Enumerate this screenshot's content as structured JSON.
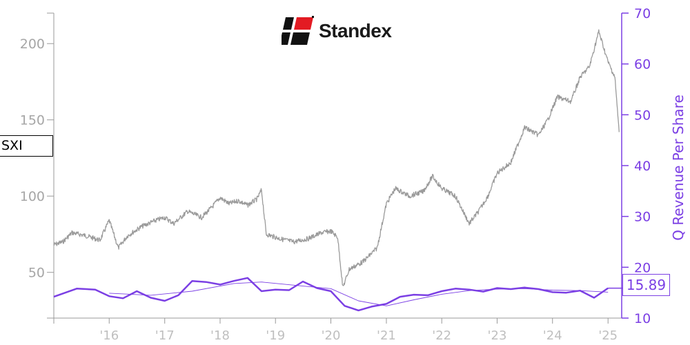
{
  "logo": {
    "company": "Standex"
  },
  "ticker": "SXI",
  "last_value_label": "15.89",
  "colors": {
    "price": "#9a9a9a",
    "revenue": "#7b3fe4",
    "axis_left": "#a6a6a6",
    "axis_x": "#bfbfbf"
  },
  "chart_data": {
    "type": "line",
    "x_axis": {
      "type": "date",
      "range": [
        "2015-01-01",
        "2025-04-01"
      ],
      "tick_labels": [
        "'16",
        "'17",
        "'18",
        "'19",
        "'20",
        "'21",
        "'22",
        "'23",
        "'24",
        "'25"
      ]
    },
    "y_left": {
      "label": "",
      "range": [
        20,
        220
      ],
      "ticks": [
        50,
        100,
        150,
        200
      ]
    },
    "y_right": {
      "label": "Q Revenue Per Share",
      "range": [
        10,
        70
      ],
      "ticks": [
        10,
        20,
        30,
        40,
        50,
        60,
        70
      ]
    },
    "series": [
      {
        "axis": "left",
        "points": [
          [
            "2015-01-01",
            68
          ],
          [
            "2015-03-01",
            70
          ],
          [
            "2015-05-01",
            76
          ],
          [
            "2015-08-01",
            74
          ],
          [
            "2015-11-01",
            71
          ],
          [
            "2016-01-01",
            84
          ],
          [
            "2016-03-01",
            66
          ],
          [
            "2016-05-01",
            74
          ],
          [
            "2016-08-01",
            80
          ],
          [
            "2016-11-01",
            84
          ],
          [
            "2017-01-01",
            86
          ],
          [
            "2017-03-01",
            82
          ],
          [
            "2017-06-01",
            90
          ],
          [
            "2017-09-01",
            86
          ],
          [
            "2017-11-01",
            92
          ],
          [
            "2018-01-01",
            99
          ],
          [
            "2018-03-01",
            95
          ],
          [
            "2018-05-01",
            97
          ],
          [
            "2018-07-01",
            94
          ],
          [
            "2018-09-01",
            98
          ],
          [
            "2018-10-01",
            104
          ],
          [
            "2018-11-01",
            75
          ],
          [
            "2019-02-01",
            72
          ],
          [
            "2019-05-01",
            70
          ],
          [
            "2019-08-01",
            72
          ],
          [
            "2019-11-01",
            76
          ],
          [
            "2020-01-01",
            77
          ],
          [
            "2020-02-15",
            73
          ],
          [
            "2020-03-20",
            40
          ],
          [
            "2020-05-01",
            52
          ],
          [
            "2020-08-01",
            57
          ],
          [
            "2020-11-01",
            66
          ],
          [
            "2021-01-01",
            95
          ],
          [
            "2021-03-01",
            105
          ],
          [
            "2021-06-01",
            100
          ],
          [
            "2021-09-01",
            103
          ],
          [
            "2021-11-01",
            113
          ],
          [
            "2022-01-01",
            105
          ],
          [
            "2022-04-01",
            100
          ],
          [
            "2022-07-01",
            82
          ],
          [
            "2022-09-01",
            90
          ],
          [
            "2022-11-01",
            100
          ],
          [
            "2023-01-01",
            115
          ],
          [
            "2023-04-01",
            122
          ],
          [
            "2023-07-01",
            145
          ],
          [
            "2023-10-01",
            140
          ],
          [
            "2023-12-01",
            150
          ],
          [
            "2024-02-01",
            165
          ],
          [
            "2024-05-01",
            162
          ],
          [
            "2024-07-01",
            178
          ],
          [
            "2024-09-01",
            185
          ],
          [
            "2024-11-01",
            208
          ],
          [
            "2025-01-01",
            188
          ],
          [
            "2025-02-15",
            178
          ],
          [
            "2025-03-15",
            142
          ]
        ]
      },
      {
        "axis": "right",
        "name": "Q Revenue Per Share",
        "points": [
          [
            "2015-01-01",
            14.2
          ],
          [
            "2015-06-01",
            15.8
          ],
          [
            "2015-10-01",
            15.6
          ],
          [
            "2016-01-01",
            14.3
          ],
          [
            "2016-04-01",
            13.9
          ],
          [
            "2016-07-01",
            15.3
          ],
          [
            "2016-10-01",
            14.0
          ],
          [
            "2017-01-01",
            13.4
          ],
          [
            "2017-04-01",
            14.5
          ],
          [
            "2017-07-01",
            17.3
          ],
          [
            "2017-10-01",
            17.1
          ],
          [
            "2018-01-01",
            16.6
          ],
          [
            "2018-04-01",
            17.3
          ],
          [
            "2018-07-01",
            17.9
          ],
          [
            "2018-10-01",
            15.3
          ],
          [
            "2019-01-01",
            15.6
          ],
          [
            "2019-04-01",
            15.5
          ],
          [
            "2019-07-01",
            17.2
          ],
          [
            "2019-10-01",
            15.9
          ],
          [
            "2020-01-01",
            15.3
          ],
          [
            "2020-04-01",
            12.4
          ],
          [
            "2020-07-01",
            11.5
          ],
          [
            "2020-10-01",
            12.3
          ],
          [
            "2021-01-01",
            12.8
          ],
          [
            "2021-04-01",
            14.2
          ],
          [
            "2021-07-01",
            14.6
          ],
          [
            "2021-10-01",
            14.5
          ],
          [
            "2022-01-01",
            15.3
          ],
          [
            "2022-04-01",
            15.8
          ],
          [
            "2022-07-01",
            15.6
          ],
          [
            "2022-10-01",
            15.2
          ],
          [
            "2023-01-01",
            15.9
          ],
          [
            "2023-04-01",
            15.7
          ],
          [
            "2023-07-01",
            16.0
          ],
          [
            "2023-10-01",
            15.7
          ],
          [
            "2024-01-01",
            15.1
          ],
          [
            "2024-04-01",
            15.0
          ],
          [
            "2024-07-01",
            15.4
          ],
          [
            "2024-10-01",
            14.0
          ],
          [
            "2025-01-01",
            15.89
          ]
        ]
      },
      {
        "axis": "right",
        "points": [
          [
            "2016-01-01",
            14.9
          ],
          [
            "2016-10-01",
            14.5
          ],
          [
            "2017-07-01",
            15.3
          ],
          [
            "2018-04-01",
            16.8
          ],
          [
            "2018-10-01",
            17.1
          ],
          [
            "2019-07-01",
            16.3
          ],
          [
            "2020-01-01",
            15.8
          ],
          [
            "2020-07-01",
            13.4
          ],
          [
            "2021-01-01",
            12.4
          ],
          [
            "2021-07-01",
            13.6
          ],
          [
            "2022-01-01",
            14.7
          ],
          [
            "2022-07-01",
            15.4
          ],
          [
            "2023-01-01",
            15.7
          ],
          [
            "2023-07-01",
            15.8
          ],
          [
            "2024-01-01",
            15.5
          ],
          [
            "2024-07-01",
            15.4
          ],
          [
            "2025-01-01",
            15.1
          ]
        ]
      }
    ]
  }
}
